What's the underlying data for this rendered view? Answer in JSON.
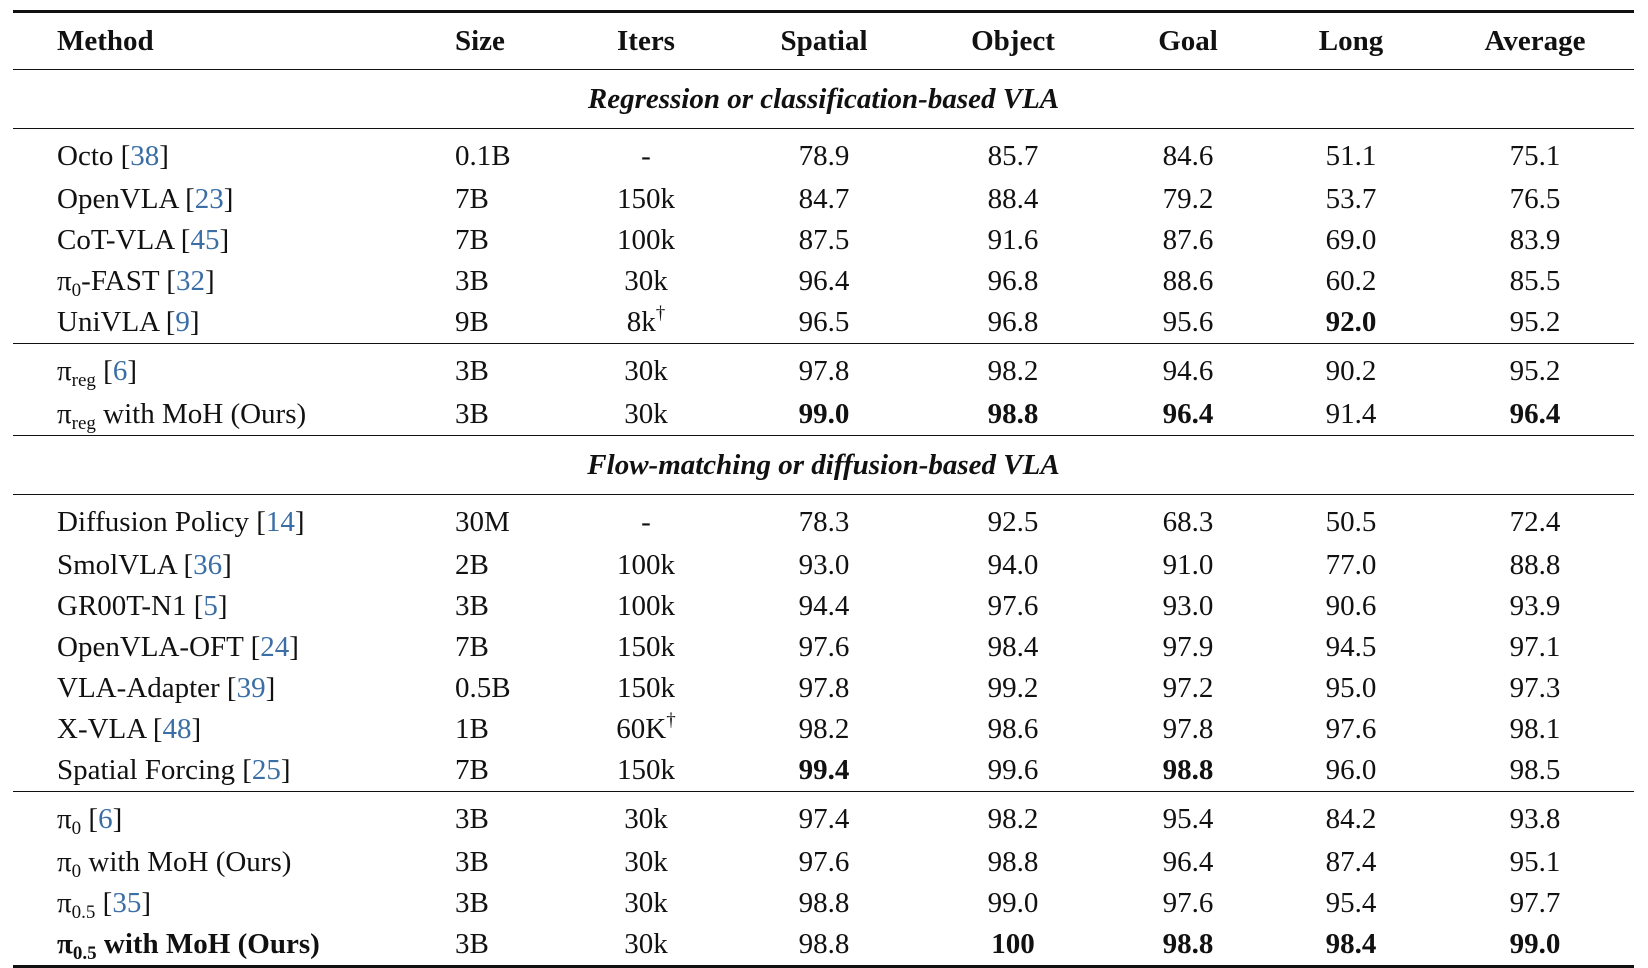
{
  "header": [
    "Method",
    "Size",
    "Iters",
    "Spatial",
    "Object",
    "Goal",
    "Long",
    "Average"
  ],
  "sections": [
    {
      "title": "Regression or classification-based VLA",
      "groups": [
        [
          {
            "cells": [
              [
                {
                  "text": "Octo ["
                },
                {
                  "cite": "38"
                },
                {
                  "text": "]"
                }
              ],
              "0.1B",
              "-",
              "78.9",
              "85.7",
              "84.6",
              "51.1",
              "75.1"
            ],
            "bold": []
          },
          {
            "cells": [
              [
                {
                  "text": "OpenVLA ["
                },
                {
                  "cite": "23"
                },
                {
                  "text": "]"
                }
              ],
              "7B",
              "150k",
              "84.7",
              "88.4",
              "79.2",
              "53.7",
              "76.5"
            ],
            "bold": []
          },
          {
            "cells": [
              [
                {
                  "text": "CoT-VLA ["
                },
                {
                  "cite": "45"
                },
                {
                  "text": "]"
                }
              ],
              "7B",
              "100k",
              "87.5",
              "91.6",
              "87.6",
              "69.0",
              "83.9"
            ],
            "bold": []
          },
          {
            "cells": [
              [
                {
                  "text": "π"
                },
                {
                  "sub": "0"
                },
                {
                  "text": "-FAST ["
                },
                {
                  "cite": "32"
                },
                {
                  "text": "]"
                }
              ],
              "3B",
              "30k",
              "96.4",
              "96.8",
              "88.6",
              "60.2",
              "85.5"
            ],
            "bold": []
          },
          {
            "cells": [
              [
                {
                  "text": "UniVLA ["
                },
                {
                  "cite": "9"
                },
                {
                  "text": "]"
                }
              ],
              "9B",
              [
                {
                  "text": "8k"
                },
                {
                  "sup": "†"
                }
              ],
              "96.5",
              "96.8",
              "95.6",
              "92.0",
              "95.2"
            ],
            "bold": [
              6
            ]
          }
        ],
        [
          {
            "cells": [
              [
                {
                  "text": "π"
                },
                {
                  "sub": "reg"
                },
                {
                  "text": " ["
                },
                {
                  "cite": "6"
                },
                {
                  "text": "]"
                }
              ],
              "3B",
              "30k",
              "97.8",
              "98.2",
              "94.6",
              "90.2",
              "95.2"
            ],
            "bold": []
          },
          {
            "cells": [
              [
                {
                  "text": "π"
                },
                {
                  "sub": "reg"
                },
                {
                  "text": " with MoH (Ours)"
                }
              ],
              "3B",
              "30k",
              "99.0",
              "98.8",
              "96.4",
              "91.4",
              "96.4"
            ],
            "bold": [
              3,
              4,
              5,
              7
            ]
          }
        ]
      ]
    },
    {
      "title": "Flow-matching or diffusion-based VLA",
      "groups": [
        [
          {
            "cells": [
              [
                {
                  "text": "Diffusion Policy ["
                },
                {
                  "cite": "14"
                },
                {
                  "text": "]"
                }
              ],
              "30M",
              "-",
              "78.3",
              "92.5",
              "68.3",
              "50.5",
              "72.4"
            ],
            "bold": []
          },
          {
            "cells": [
              [
                {
                  "text": "SmolVLA ["
                },
                {
                  "cite": "36"
                },
                {
                  "text": "]"
                }
              ],
              "2B",
              "100k",
              "93.0",
              "94.0",
              "91.0",
              "77.0",
              "88.8"
            ],
            "bold": []
          },
          {
            "cells": [
              [
                {
                  "text": "GR00T-N1 ["
                },
                {
                  "cite": "5"
                },
                {
                  "text": "]"
                }
              ],
              "3B",
              "100k",
              "94.4",
              "97.6",
              "93.0",
              "90.6",
              "93.9"
            ],
            "bold": []
          },
          {
            "cells": [
              [
                {
                  "text": "OpenVLA-OFT ["
                },
                {
                  "cite": "24"
                },
                {
                  "text": "]"
                }
              ],
              "7B",
              "150k",
              "97.6",
              "98.4",
              "97.9",
              "94.5",
              "97.1"
            ],
            "bold": []
          },
          {
            "cells": [
              [
                {
                  "text": "VLA-Adapter ["
                },
                {
                  "cite": "39"
                },
                {
                  "text": "]"
                }
              ],
              "0.5B",
              "150k",
              "97.8",
              "99.2",
              "97.2",
              "95.0",
              "97.3"
            ],
            "bold": []
          },
          {
            "cells": [
              [
                {
                  "text": "X-VLA ["
                },
                {
                  "cite": "48"
                },
                {
                  "text": "]"
                }
              ],
              "1B",
              [
                {
                  "text": "60K"
                },
                {
                  "sup": "†"
                }
              ],
              "98.2",
              "98.6",
              "97.8",
              "97.6",
              "98.1"
            ],
            "bold": []
          },
          {
            "cells": [
              [
                {
                  "text": "Spatial Forcing ["
                },
                {
                  "cite": "25"
                },
                {
                  "text": "]"
                }
              ],
              "7B",
              "150k",
              "99.4",
              "99.6",
              "98.8",
              "96.0",
              "98.5"
            ],
            "bold": [
              3,
              5
            ]
          }
        ],
        [
          {
            "cells": [
              [
                {
                  "text": "π"
                },
                {
                  "sub": "0"
                },
                {
                  "text": " ["
                },
                {
                  "cite": "6"
                },
                {
                  "text": "]"
                }
              ],
              "3B",
              "30k",
              "97.4",
              "98.2",
              "95.4",
              "84.2",
              "93.8"
            ],
            "bold": []
          },
          {
            "cells": [
              [
                {
                  "text": "π"
                },
                {
                  "sub": "0"
                },
                {
                  "text": " with MoH (Ours)"
                }
              ],
              "3B",
              "30k",
              "97.6",
              "98.8",
              "96.4",
              "87.4",
              "95.1"
            ],
            "bold": []
          },
          {
            "cells": [
              [
                {
                  "text": "π"
                },
                {
                  "sub": "0.5"
                },
                {
                  "text": " ["
                },
                {
                  "cite": "35"
                },
                {
                  "text": "]"
                }
              ],
              "3B",
              "30k",
              "98.8",
              "99.0",
              "97.6",
              "95.4",
              "97.7"
            ],
            "bold": []
          },
          {
            "cells": [
              [
                {
                  "text": "π"
                },
                {
                  "sub": "0.5"
                },
                {
                  "text": " with MoH (Ours)"
                }
              ],
              "3B",
              "30k",
              "98.8",
              "100",
              "98.8",
              "98.4",
              "99.0"
            ],
            "bold": [
              0,
              4,
              5,
              6,
              7
            ]
          }
        ]
      ]
    }
  ]
}
